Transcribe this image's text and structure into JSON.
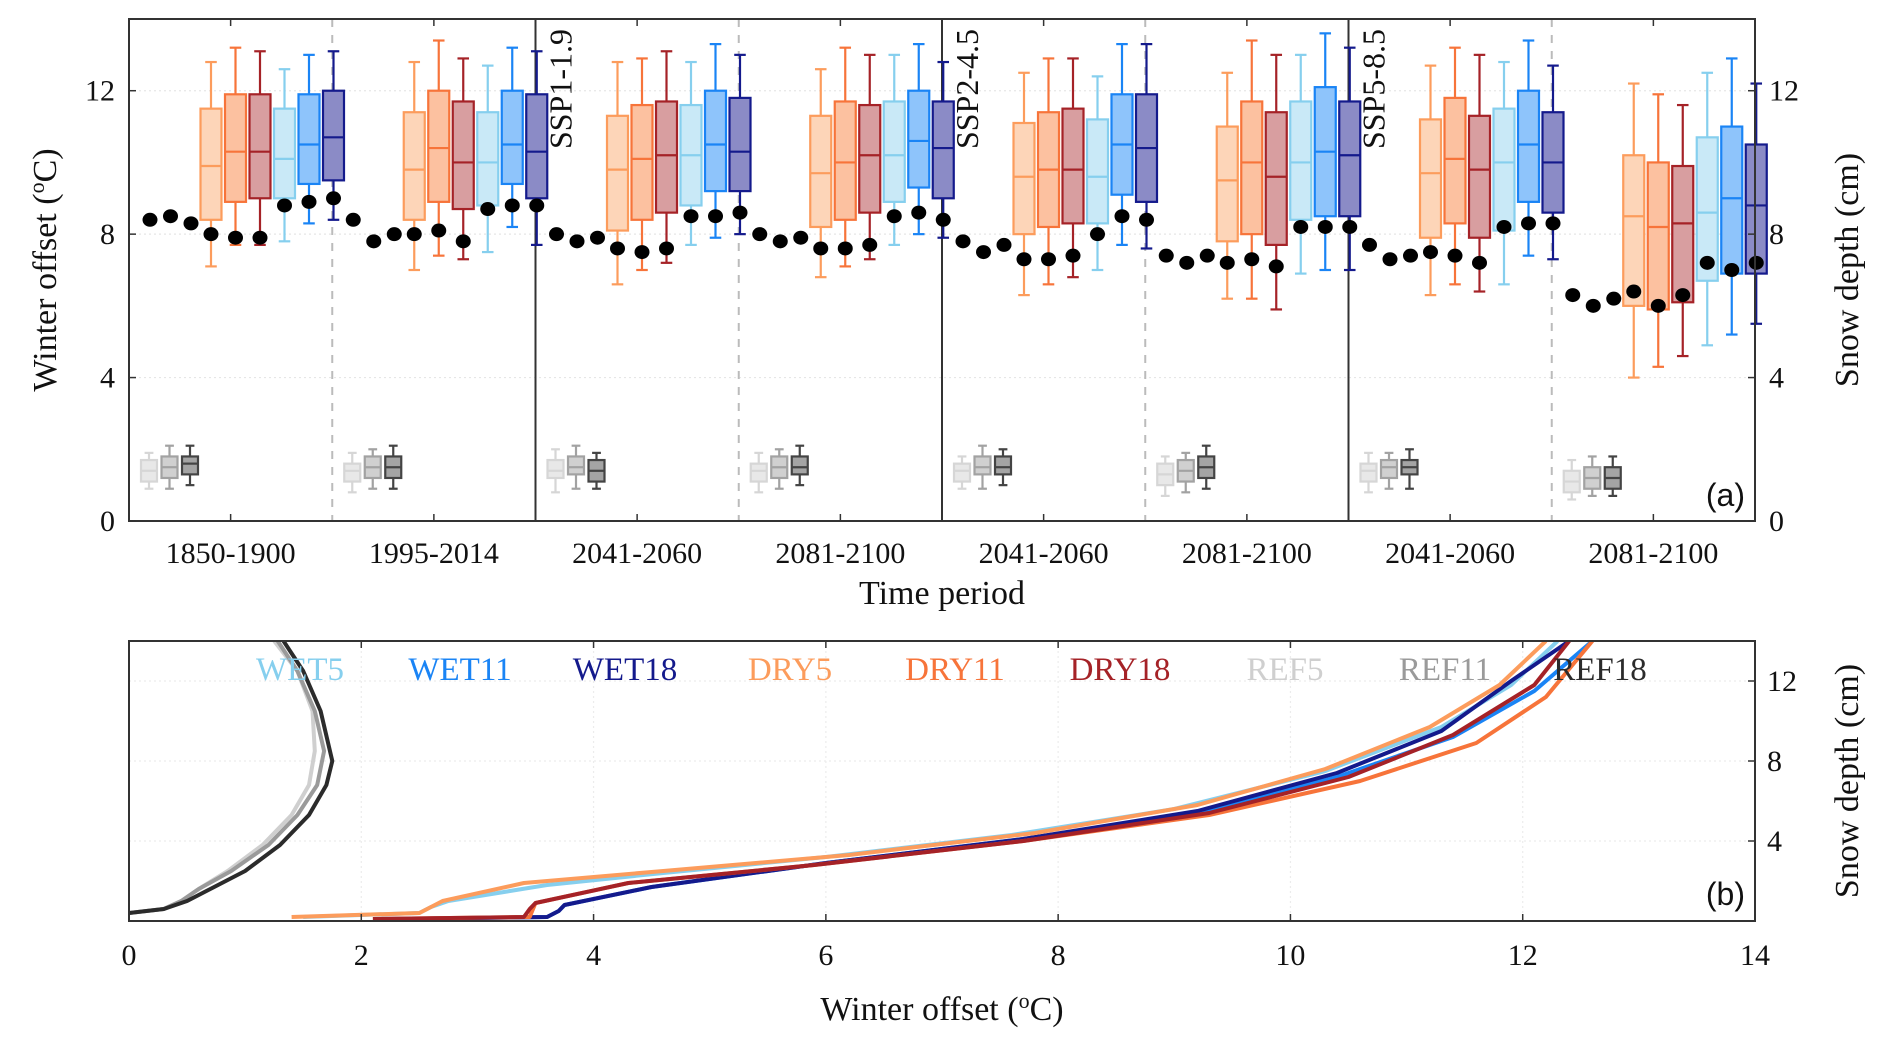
{
  "chart_data": [
    {
      "panel": "(a)",
      "type": "box",
      "xlabel": "Time period",
      "ylabel": "Winter offset (°C)",
      "ylabel_parts": {
        "pre": "Winter offset (",
        "sup": "o",
        "post": "C)"
      },
      "ylabel_right": "Snow depth (cm)",
      "ylim": [
        0,
        14
      ],
      "ylim_right": [
        0,
        14
      ],
      "yticks": [
        0,
        4,
        8,
        12
      ],
      "yticks_right": [
        0,
        4,
        8,
        12
      ],
      "grid": true,
      "scenario_labels": [
        "",
        "SSP1-1.9",
        "SSP2-4.5",
        "SSP5-8.5"
      ],
      "categories": [
        "1850-1900",
        "1995-2014",
        "2041-2060",
        "2081-2100",
        "2041-2060",
        "2081-2100",
        "2041-2060",
        "2081-2100"
      ],
      "series_names": [
        "DRY5",
        "DRY11",
        "DRY18",
        "WET5",
        "WET11",
        "WET18"
      ],
      "ref_series_names": [
        "REF5",
        "REF11",
        "REF18"
      ],
      "colors": {
        "DRY5": {
          "line": "#fc9c5c",
          "fill": "#fdd5b8"
        },
        "DRY11": {
          "line": "#f7743a",
          "fill": "#fcc1a0"
        },
        "DRY18": {
          "line": "#a52227",
          "fill": "#d89ea0"
        },
        "WET5": {
          "line": "#86cfee",
          "fill": "#c9e9f7"
        },
        "WET11": {
          "line": "#1a84f5",
          "fill": "#8ec4fb"
        },
        "WET18": {
          "line": "#141a8c",
          "fill": "#8b8bc6"
        },
        "REF5": {
          "line": "#d6d6d6",
          "fill": "#e8e8e8"
        },
        "REF11": {
          "line": "#a2a2a2",
          "fill": "#d0d0d0"
        },
        "REF18": {
          "line": "#444444",
          "fill": "#a4a4a4"
        }
      },
      "box_stats_format": "[whisker_low, q1, median, q3, whisker_high]",
      "groups": [
        {
          "period": "1850-1900",
          "boxes": [
            [
              7.1,
              8.4,
              9.9,
              11.5,
              12.8
            ],
            [
              7.7,
              8.9,
              10.3,
              11.9,
              13.2
            ],
            [
              7.7,
              9.0,
              10.3,
              11.9,
              13.1
            ],
            [
              7.8,
              9.0,
              10.1,
              11.5,
              12.6
            ],
            [
              8.3,
              9.4,
              10.5,
              11.9,
              13.0
            ],
            [
              8.4,
              9.5,
              10.7,
              12.0,
              13.1
            ]
          ],
          "ref_boxes": [
            [
              0.9,
              1.1,
              1.4,
              1.7,
              1.9
            ],
            [
              0.9,
              1.2,
              1.5,
              1.8,
              2.1
            ],
            [
              1.0,
              1.3,
              1.6,
              1.8,
              2.1
            ]
          ],
          "snow_depth": [
            8.4,
            8.5,
            8.3,
            8.0,
            7.9,
            7.9,
            8.8,
            8.9,
            9.0
          ]
        },
        {
          "period": "1995-2014",
          "boxes": [
            [
              7.0,
              8.4,
              9.8,
              11.4,
              12.8
            ],
            [
              7.4,
              8.9,
              10.4,
              12.0,
              13.4
            ],
            [
              7.3,
              8.7,
              10.0,
              11.7,
              12.9
            ],
            [
              7.5,
              8.8,
              10.0,
              11.4,
              12.7
            ],
            [
              8.2,
              9.4,
              10.5,
              12.0,
              13.2
            ],
            [
              7.7,
              9.0,
              10.3,
              11.9,
              13.1
            ]
          ],
          "ref_boxes": [
            [
              0.8,
              1.1,
              1.4,
              1.6,
              1.9
            ],
            [
              0.9,
              1.2,
              1.5,
              1.8,
              2.0
            ],
            [
              0.9,
              1.2,
              1.5,
              1.8,
              2.1
            ]
          ],
          "snow_depth": [
            8.4,
            7.8,
            8.0,
            8.0,
            8.1,
            7.8,
            8.7,
            8.8,
            8.8
          ]
        },
        {
          "period": "2041-2060",
          "scenario": "SSP1-1.9",
          "boxes": [
            [
              6.6,
              8.1,
              9.8,
              11.3,
              12.8
            ],
            [
              7.0,
              8.4,
              10.1,
              11.6,
              12.9
            ],
            [
              7.2,
              8.6,
              10.2,
              11.7,
              13.1
            ],
            [
              7.7,
              8.8,
              10.2,
              11.6,
              12.8
            ],
            [
              7.9,
              9.2,
              10.5,
              12.0,
              13.3
            ],
            [
              8.0,
              9.2,
              10.3,
              11.8,
              13.0
            ]
          ],
          "ref_boxes": [
            [
              0.8,
              1.2,
              1.4,
              1.7,
              2.0
            ],
            [
              0.9,
              1.3,
              1.5,
              1.8,
              2.1
            ],
            [
              0.9,
              1.1,
              1.4,
              1.7,
              1.9
            ]
          ],
          "snow_depth": [
            8.0,
            7.8,
            7.9,
            7.6,
            7.5,
            7.6,
            8.5,
            8.5,
            8.6
          ]
        },
        {
          "period": "2081-2100",
          "scenario": "SSP1-1.9",
          "boxes": [
            [
              6.8,
              8.2,
              9.7,
              11.3,
              12.6
            ],
            [
              7.1,
              8.4,
              10.0,
              11.7,
              13.2
            ],
            [
              7.3,
              8.6,
              10.2,
              11.6,
              13.0
            ],
            [
              7.7,
              8.9,
              10.2,
              11.7,
              13.0
            ],
            [
              8.0,
              9.3,
              10.6,
              12.0,
              13.3
            ],
            [
              7.9,
              9.0,
              10.4,
              11.7,
              12.8
            ]
          ],
          "ref_boxes": [
            [
              0.8,
              1.1,
              1.4,
              1.6,
              1.9
            ],
            [
              0.9,
              1.2,
              1.5,
              1.8,
              2.0
            ],
            [
              1.0,
              1.3,
              1.5,
              1.8,
              2.1
            ]
          ],
          "snow_depth": [
            8.0,
            7.8,
            7.9,
            7.6,
            7.6,
            7.7,
            8.5,
            8.6,
            8.4
          ]
        },
        {
          "period": "2041-2060",
          "scenario": "SSP2-4.5",
          "boxes": [
            [
              6.3,
              8.0,
              9.6,
              11.1,
              12.5
            ],
            [
              6.6,
              8.2,
              9.8,
              11.4,
              12.9
            ],
            [
              6.8,
              8.3,
              9.8,
              11.5,
              12.9
            ],
            [
              7.0,
              8.3,
              9.6,
              11.2,
              12.4
            ],
            [
              7.7,
              9.1,
              10.5,
              11.9,
              13.3
            ],
            [
              7.6,
              8.9,
              10.4,
              11.9,
              13.3
            ]
          ],
          "ref_boxes": [
            [
              0.9,
              1.1,
              1.4,
              1.6,
              1.8
            ],
            [
              0.9,
              1.3,
              1.5,
              1.8,
              2.1
            ],
            [
              1.0,
              1.3,
              1.5,
              1.8,
              2.0
            ]
          ],
          "snow_depth": [
            7.8,
            7.5,
            7.7,
            7.3,
            7.3,
            7.4,
            8.0,
            8.5,
            8.4
          ]
        },
        {
          "period": "2081-2100",
          "scenario": "SSP2-4.5",
          "boxes": [
            [
              6.2,
              7.8,
              9.5,
              11.0,
              12.5
            ],
            [
              6.2,
              8.0,
              10.0,
              11.7,
              13.4
            ],
            [
              5.9,
              7.7,
              9.6,
              11.4,
              13.0
            ],
            [
              6.9,
              8.4,
              10.0,
              11.7,
              13.0
            ],
            [
              7.0,
              8.5,
              10.3,
              12.1,
              13.6
            ],
            [
              7.0,
              8.5,
              10.2,
              11.7,
              13.2
            ]
          ],
          "ref_boxes": [
            [
              0.7,
              1.0,
              1.3,
              1.6,
              1.8
            ],
            [
              0.8,
              1.1,
              1.4,
              1.7,
              1.9
            ],
            [
              0.9,
              1.2,
              1.5,
              1.8,
              2.1
            ]
          ],
          "snow_depth": [
            7.4,
            7.2,
            7.4,
            7.2,
            7.3,
            7.1,
            8.2,
            8.2,
            8.2
          ]
        },
        {
          "period": "2041-2060",
          "scenario": "SSP5-8.5",
          "boxes": [
            [
              6.3,
              7.9,
              9.7,
              11.2,
              12.7
            ],
            [
              6.6,
              8.3,
              10.1,
              11.8,
              13.2
            ],
            [
              6.4,
              7.9,
              9.8,
              11.3,
              13.0
            ],
            [
              6.6,
              8.1,
              10.0,
              11.5,
              12.8
            ],
            [
              7.4,
              8.9,
              10.5,
              12.0,
              13.4
            ],
            [
              7.3,
              8.6,
              10.0,
              11.4,
              12.7
            ]
          ],
          "ref_boxes": [
            [
              0.8,
              1.1,
              1.4,
              1.6,
              1.9
            ],
            [
              0.9,
              1.2,
              1.5,
              1.7,
              1.9
            ],
            [
              0.9,
              1.3,
              1.5,
              1.7,
              2.0
            ]
          ],
          "snow_depth": [
            7.7,
            7.3,
            7.4,
            7.5,
            7.4,
            7.2,
            8.2,
            8.3,
            8.3
          ]
        },
        {
          "period": "2081-2100",
          "scenario": "SSP5-8.5",
          "boxes": [
            [
              4.0,
              6.0,
              8.5,
              10.2,
              12.2
            ],
            [
              4.3,
              5.9,
              8.2,
              10.0,
              11.9
            ],
            [
              4.6,
              6.1,
              8.3,
              9.9,
              11.6
            ],
            [
              4.9,
              6.7,
              8.6,
              10.7,
              12.5
            ],
            [
              5.2,
              6.9,
              9.0,
              11.0,
              12.9
            ],
            [
              5.5,
              6.9,
              8.8,
              10.5,
              12.2
            ]
          ],
          "ref_boxes": [
            [
              0.6,
              0.8,
              1.1,
              1.4,
              1.7
            ],
            [
              0.7,
              0.9,
              1.2,
              1.5,
              1.8
            ],
            [
              0.7,
              0.9,
              1.2,
              1.5,
              1.8
            ]
          ],
          "snow_depth": [
            6.3,
            6.0,
            6.2,
            6.4,
            6.0,
            6.3,
            7.2,
            7.0,
            7.2
          ]
        }
      ]
    },
    {
      "panel": "(b)",
      "type": "line",
      "xlabel": "Winter offset (°C)",
      "xlabel_parts": {
        "pre": "Winter offset (",
        "sup": "o",
        "post": "C)"
      },
      "ylabel_right": "Snow depth (cm)",
      "xlim": [
        0,
        14
      ],
      "ylim": [
        0,
        14
      ],
      "xticks": [
        0,
        2,
        4,
        6,
        8,
        10,
        12,
        14
      ],
      "yticks_right": [
        4,
        8,
        12
      ],
      "grid": true,
      "legend_placement": "top",
      "legend": [
        "WET5",
        "WET11",
        "WET18",
        "DRY5",
        "DRY11",
        "DRY18",
        "REF5",
        "REF11",
        "REF18"
      ],
      "series": [
        {
          "name": "REF5",
          "color": "#cfcfcf",
          "x": [
            0.0,
            0.3,
            0.45,
            0.6,
            0.85,
            1.15,
            1.4,
            1.55,
            1.6,
            1.58,
            1.45,
            1.25
          ],
          "y": [
            0.4,
            0.6,
            1.0,
            1.6,
            2.5,
            3.8,
            5.3,
            6.8,
            8.5,
            10.5,
            12.5,
            14.0
          ]
        },
        {
          "name": "REF11",
          "color": "#9a9a9a",
          "x": [
            0.0,
            0.3,
            0.45,
            0.6,
            0.88,
            1.2,
            1.45,
            1.62,
            1.68,
            1.6,
            1.45,
            1.28
          ],
          "y": [
            0.4,
            0.6,
            1.0,
            1.6,
            2.5,
            3.8,
            5.3,
            6.8,
            8.5,
            10.5,
            12.5,
            14.0
          ]
        },
        {
          "name": "REF18",
          "color": "#2b2b2b",
          "x": [
            0.0,
            0.3,
            0.5,
            0.7,
            1.0,
            1.3,
            1.55,
            1.7,
            1.75,
            1.65,
            1.5,
            1.33
          ],
          "y": [
            0.4,
            0.6,
            1.0,
            1.6,
            2.5,
            3.8,
            5.3,
            6.8,
            8.0,
            10.5,
            12.5,
            14.0
          ]
        },
        {
          "name": "WET5",
          "color": "#86cfee",
          "x": [
            1.5,
            2.5,
            2.6,
            2.75,
            3.6,
            4.6,
            6.0,
            7.6,
            9.0,
            10.3,
            11.3,
            11.9,
            12.3
          ],
          "y": [
            0.2,
            0.4,
            0.7,
            1.0,
            1.8,
            2.4,
            3.2,
            4.3,
            5.6,
            7.5,
            9.7,
            11.8,
            14.0
          ]
        },
        {
          "name": "WET11",
          "color": "#1a84f5",
          "x": [
            2.2,
            3.6,
            3.7,
            3.75,
            4.5,
            6.0,
            7.7,
            9.2,
            10.4,
            11.4,
            12.1,
            12.6
          ],
          "y": [
            0.1,
            0.2,
            0.5,
            0.8,
            1.7,
            2.9,
            4.1,
            5.4,
            7.2,
            9.2,
            11.5,
            14.0
          ]
        },
        {
          "name": "WET18",
          "color": "#141a8c",
          "x": [
            2.2,
            3.6,
            3.7,
            3.75,
            4.5,
            6.0,
            7.7,
            9.2,
            10.4,
            11.3,
            11.9,
            12.4
          ],
          "y": [
            0.1,
            0.2,
            0.5,
            0.8,
            1.7,
            2.9,
            4.1,
            5.5,
            7.4,
            9.5,
            12.0,
            14.0
          ]
        },
        {
          "name": "DRY5",
          "color": "#fc9c5c",
          "x": [
            1.4,
            2.5,
            2.7,
            3.4,
            4.6,
            6.2,
            7.8,
            9.2,
            10.3,
            11.2,
            11.8,
            12.2
          ],
          "y": [
            0.2,
            0.4,
            1.0,
            1.9,
            2.5,
            3.3,
            4.4,
            5.8,
            7.6,
            9.7,
            11.8,
            14.0
          ]
        },
        {
          "name": "DRY11",
          "color": "#f7743a",
          "x": [
            2.1,
            3.45,
            3.5,
            4.3,
            5.9,
            7.7,
            9.3,
            10.6,
            11.6,
            12.2,
            12.6
          ],
          "y": [
            0.1,
            0.2,
            0.9,
            1.9,
            2.8,
            4.0,
            5.3,
            7.0,
            8.9,
            11.2,
            14.0
          ]
        },
        {
          "name": "DRY18",
          "color": "#a52227",
          "x": [
            2.1,
            3.4,
            3.45,
            3.5,
            4.3,
            5.9,
            7.7,
            9.3,
            10.5,
            11.4,
            12.1,
            12.4
          ],
          "y": [
            0.1,
            0.2,
            0.6,
            0.9,
            1.9,
            2.8,
            4.0,
            5.4,
            7.2,
            9.3,
            11.8,
            14.0
          ]
        }
      ]
    }
  ]
}
